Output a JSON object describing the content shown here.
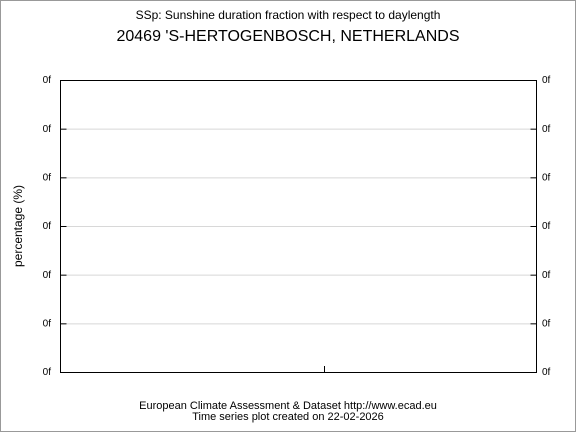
{
  "header": {
    "title": "SSp: Sunshine duration fraction with respect to daylength",
    "subtitle": "20469 'S-HERTOGENBOSCH, NETHERLANDS"
  },
  "plot": {
    "y_label": "percentage (%)",
    "left_tick_labels": [
      "0f",
      "0f",
      "0f",
      "0f",
      "0f",
      "0f",
      "0f"
    ],
    "right_tick_labels": [
      "0f",
      "0f",
      "0f",
      "0f",
      "0f",
      "0f",
      "0f"
    ]
  },
  "footer": {
    "lines": [
      "European Climate Assessment & Dataset  http://www.ecad.eu",
      "Time series plot created on 22-02-2026"
    ]
  }
}
